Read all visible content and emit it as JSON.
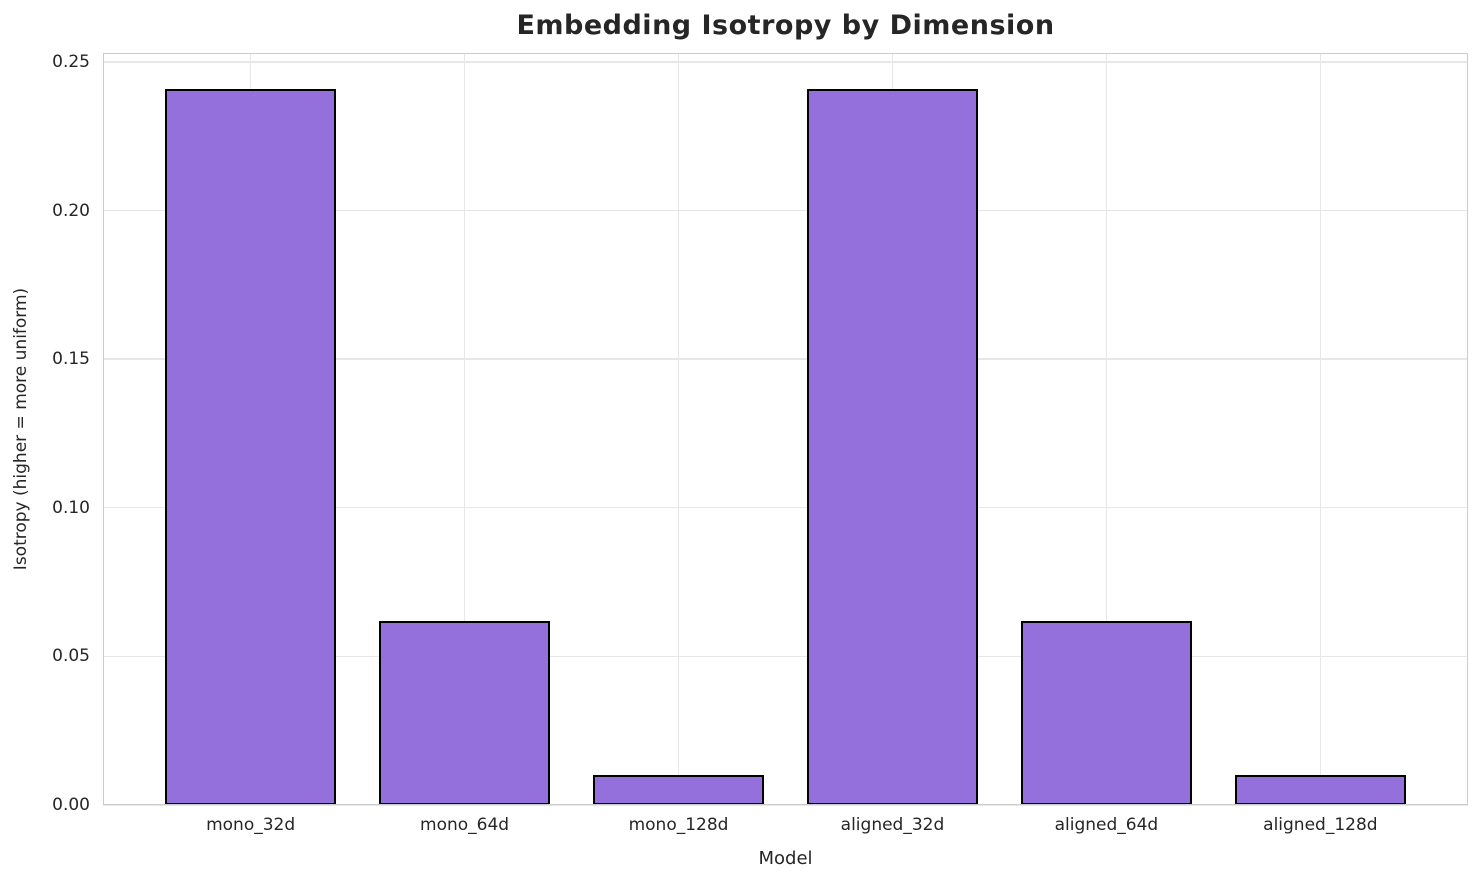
{
  "chart_data": {
    "type": "bar",
    "title": "Embedding Isotropy by Dimension",
    "xlabel": "Model",
    "ylabel": "Isotropy (higher = more uniform)",
    "categories": [
      "mono_32d",
      "mono_64d",
      "mono_128d",
      "aligned_32d",
      "aligned_64d",
      "aligned_128d"
    ],
    "values": [
      0.241,
      0.062,
      0.01,
      0.241,
      0.062,
      0.01
    ],
    "ylim": [
      0,
      0.253
    ],
    "yticks": [
      0.0,
      0.05,
      0.1,
      0.15,
      0.2,
      0.25
    ],
    "ytick_labels": [
      "0.00",
      "0.05",
      "0.10",
      "0.15",
      "0.20",
      "0.25"
    ],
    "grid": true,
    "legend": "none",
    "bar_color": "#9370DB",
    "bar_edge_color": "#000000",
    "grid_color": "#e7e7e7",
    "spine_color": "#cccccc",
    "text_color": "#262626"
  }
}
